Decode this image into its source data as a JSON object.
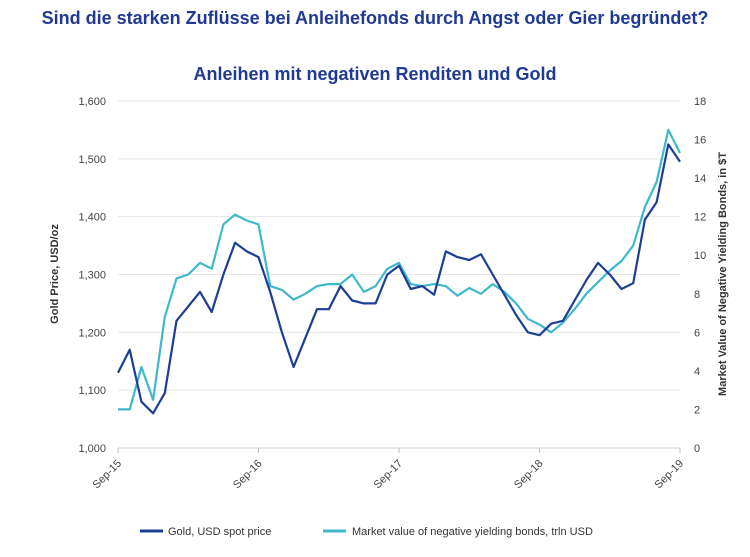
{
  "page": {
    "headline": "Sind die starken Zuflüsse bei Anleihefonds durch Angst oder Gier begründet?",
    "subtitle": "Anleihen mit negativen Renditen und Gold"
  },
  "colors": {
    "title": "#1f3a93",
    "gold": "#1c3f94",
    "negative_bonds": "#3fb8cc",
    "axis": "#cfcfcf"
  },
  "chart_data": {
    "type": "line",
    "title": "Anleihen mit negativen Renditen und Gold",
    "ylabel_left": "Gold Price, USD/oz",
    "ylabel_right": "Market Value of Negative Yielding Bonds, in $T",
    "ylim_left": [
      1000,
      1600
    ],
    "ylim_right": [
      0,
      18
    ],
    "yticks_left": [
      "1,000",
      "1,100",
      "1,200",
      "1,300",
      "1,400",
      "1,500",
      "1,600"
    ],
    "yticks_right": [
      "0",
      "2",
      "4",
      "6",
      "8",
      "10",
      "12",
      "14",
      "16",
      "18"
    ],
    "xticks": [
      "Sep-15",
      "Sep-16",
      "Sep-17",
      "Sep-18",
      "Sep-19"
    ],
    "xlim": [
      "2015-09",
      "2019-09"
    ],
    "legend_position": "bottom",
    "series": [
      {
        "name": "Gold, USD spot price",
        "axis": "left",
        "x": [
          "2015-09",
          "2015-10",
          "2015-11",
          "2015-12",
          "2016-01",
          "2016-02",
          "2016-03",
          "2016-04",
          "2016-05",
          "2016-06",
          "2016-07",
          "2016-08",
          "2016-09",
          "2016-10",
          "2016-11",
          "2016-12",
          "2017-01",
          "2017-02",
          "2017-03",
          "2017-04",
          "2017-05",
          "2017-06",
          "2017-07",
          "2017-08",
          "2017-09",
          "2017-10",
          "2017-11",
          "2017-12",
          "2018-01",
          "2018-02",
          "2018-03",
          "2018-04",
          "2018-05",
          "2018-06",
          "2018-07",
          "2018-08",
          "2018-09",
          "2018-10",
          "2018-11",
          "2018-12",
          "2019-01",
          "2019-02",
          "2019-03",
          "2019-04",
          "2019-05",
          "2019-06",
          "2019-07",
          "2019-08",
          "2019-09"
        ],
        "values": [
          1130,
          1170,
          1080,
          1060,
          1095,
          1220,
          1245,
          1270,
          1235,
          1300,
          1355,
          1340,
          1330,
          1270,
          1200,
          1140,
          1190,
          1240,
          1240,
          1280,
          1255,
          1250,
          1250,
          1300,
          1315,
          1275,
          1280,
          1265,
          1340,
          1330,
          1325,
          1335,
          1300,
          1265,
          1230,
          1200,
          1195,
          1215,
          1220,
          1255,
          1290,
          1320,
          1300,
          1275,
          1285,
          1395,
          1425,
          1525,
          1495
        ]
      },
      {
        "name": "Market value of negative yielding bonds, trln USD",
        "axis": "right",
        "x": [
          "2015-09",
          "2015-10",
          "2015-11",
          "2015-12",
          "2016-01",
          "2016-02",
          "2016-03",
          "2016-04",
          "2016-05",
          "2016-06",
          "2016-07",
          "2016-08",
          "2016-09",
          "2016-10",
          "2016-11",
          "2016-12",
          "2017-01",
          "2017-02",
          "2017-03",
          "2017-04",
          "2017-05",
          "2017-06",
          "2017-07",
          "2017-08",
          "2017-09",
          "2017-10",
          "2017-11",
          "2017-12",
          "2018-01",
          "2018-02",
          "2018-03",
          "2018-04",
          "2018-05",
          "2018-06",
          "2018-07",
          "2018-08",
          "2018-09",
          "2018-10",
          "2018-11",
          "2018-12",
          "2019-01",
          "2019-02",
          "2019-03",
          "2019-04",
          "2019-05",
          "2019-06",
          "2019-07",
          "2019-08",
          "2019-09"
        ],
        "values": [
          2,
          2,
          4.2,
          2.5,
          6.8,
          8.8,
          9.0,
          9.6,
          9.3,
          11.6,
          12.1,
          11.8,
          11.6,
          8.4,
          8.2,
          7.7,
          8.0,
          8.4,
          8.5,
          8.5,
          9.0,
          8.1,
          8.4,
          9.3,
          9.6,
          8.5,
          8.4,
          8.5,
          8.4,
          7.9,
          8.3,
          8.0,
          8.5,
          8.1,
          7.5,
          6.7,
          6.4,
          6.0,
          6.5,
          7.2,
          8.0,
          8.6,
          9.2,
          9.7,
          10.5,
          12.5,
          13.8,
          16.5,
          15.3
        ]
      }
    ]
  }
}
